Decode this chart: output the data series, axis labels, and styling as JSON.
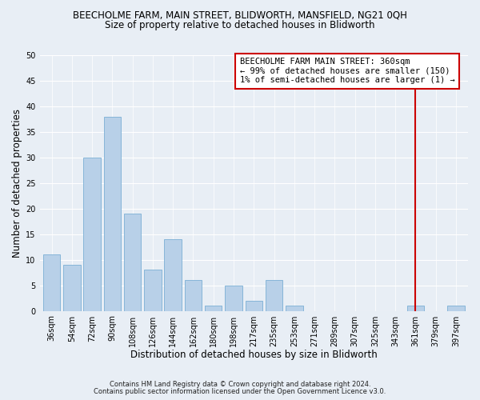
{
  "title": "BEECHOLME FARM, MAIN STREET, BLIDWORTH, MANSFIELD, NG21 0QH",
  "subtitle": "Size of property relative to detached houses in Blidworth",
  "xlabel": "Distribution of detached houses by size in Blidworth",
  "ylabel": "Number of detached properties",
  "bar_labels": [
    "36sqm",
    "54sqm",
    "72sqm",
    "90sqm",
    "108sqm",
    "126sqm",
    "144sqm",
    "162sqm",
    "180sqm",
    "198sqm",
    "217sqm",
    "235sqm",
    "253sqm",
    "271sqm",
    "289sqm",
    "307sqm",
    "325sqm",
    "343sqm",
    "361sqm",
    "379sqm",
    "397sqm"
  ],
  "bar_values": [
    11,
    9,
    30,
    38,
    19,
    8,
    14,
    6,
    1,
    5,
    2,
    6,
    1,
    0,
    0,
    0,
    0,
    0,
    1,
    0,
    1
  ],
  "bar_color": "#b8d0e8",
  "bar_edge_color": "#7bafd4",
  "vline_x_index": 18,
  "vline_color": "#cc0000",
  "annotation_text": "BEECHOLME FARM MAIN STREET: 360sqm\n← 99% of detached houses are smaller (150)\n1% of semi-detached houses are larger (1) →",
  "annotation_box_color": "#ffffff",
  "annotation_box_edge": "#cc0000",
  "ylim": [
    0,
    50
  ],
  "yticks": [
    0,
    5,
    10,
    15,
    20,
    25,
    30,
    35,
    40,
    45,
    50
  ],
  "background_color": "#e8eef5",
  "footer_line1": "Contains HM Land Registry data © Crown copyright and database right 2024.",
  "footer_line2": "Contains public sector information licensed under the Open Government Licence v3.0.",
  "title_fontsize": 8.5,
  "subtitle_fontsize": 8.5,
  "axis_label_fontsize": 8.5,
  "tick_fontsize": 7,
  "annotation_fontsize": 7.5,
  "footer_fontsize": 6.0
}
